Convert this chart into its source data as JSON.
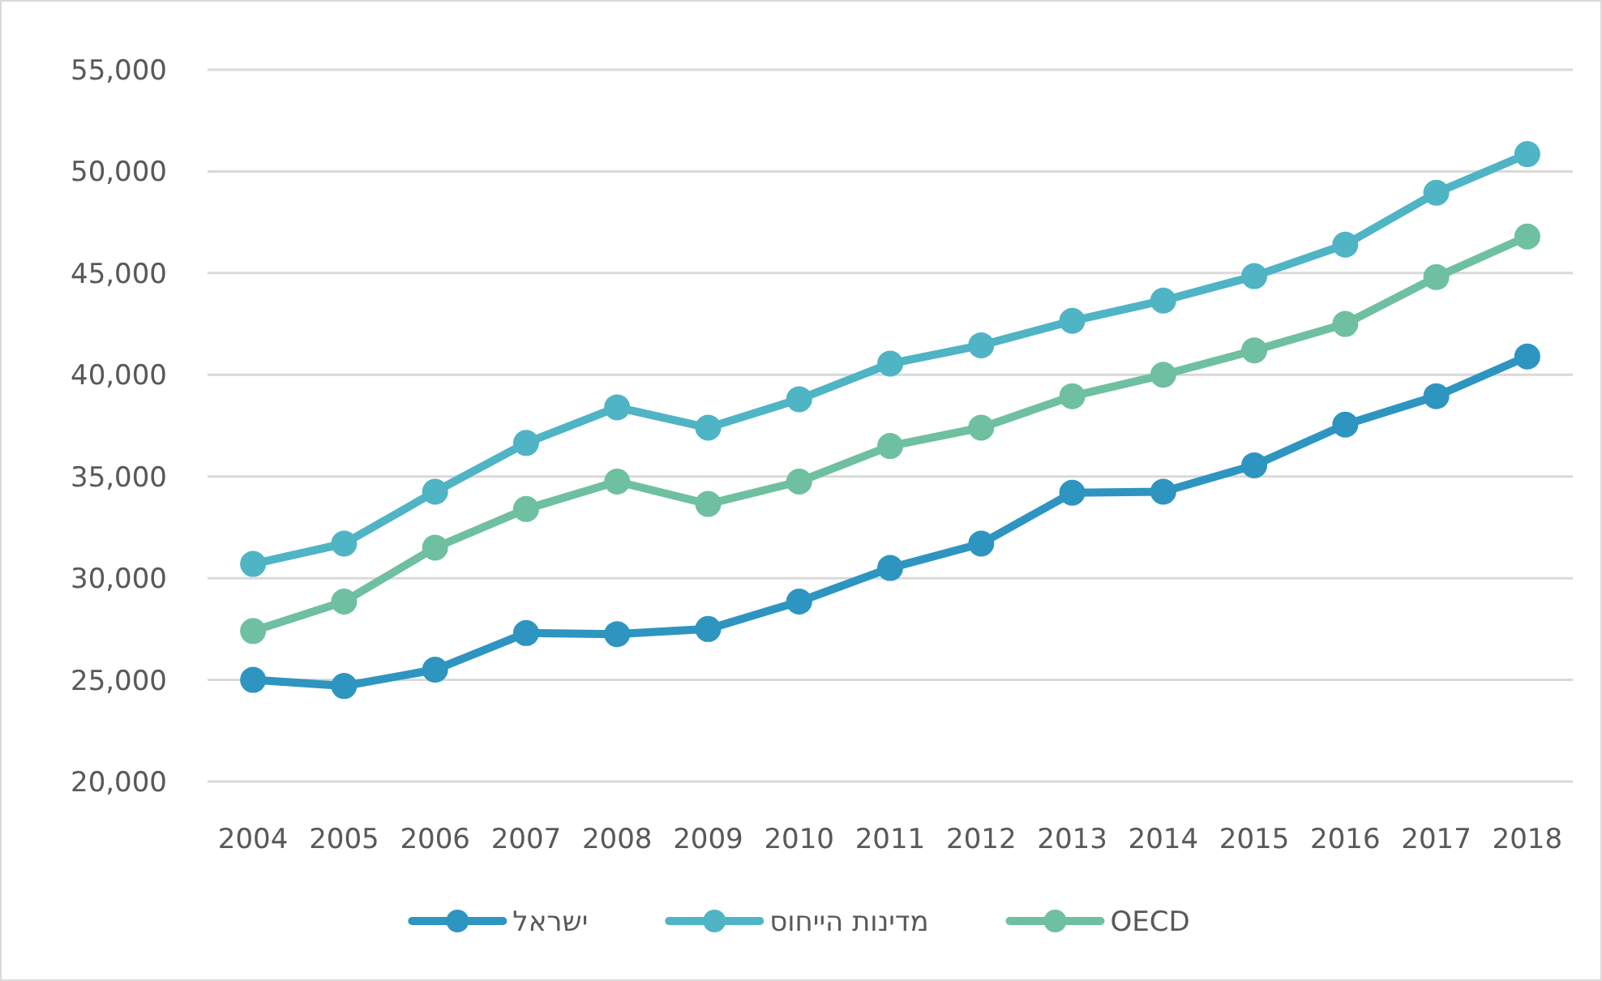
{
  "chart_data": {
    "type": "line",
    "categories": [
      "2004",
      "2005",
      "2006",
      "2007",
      "2008",
      "2009",
      "2010",
      "2011",
      "2012",
      "2013",
      "2014",
      "2015",
      "2016",
      "2017",
      "2018"
    ],
    "ylim": [
      20000,
      55000
    ],
    "yticks": [
      {
        "value": 20000,
        "label": "20,000"
      },
      {
        "value": 25000,
        "label": "25,000"
      },
      {
        "value": 30000,
        "label": "30,000"
      },
      {
        "value": 35000,
        "label": "35,000"
      },
      {
        "value": 40000,
        "label": "40,000"
      },
      {
        "value": 45000,
        "label": "45,000"
      },
      {
        "value": 50000,
        "label": "50,000"
      },
      {
        "value": 55000,
        "label": "55,000"
      }
    ],
    "grid": "y",
    "legend": "bottom",
    "marker": "circle",
    "line_style": "solid",
    "series": [
      {
        "name": "ישראל",
        "color": "#2e95c0",
        "values": [
          25000,
          24700,
          25500,
          27300,
          27250,
          27500,
          28850,
          30500,
          31700,
          34200,
          34250,
          35550,
          37550,
          38950,
          40900
        ]
      },
      {
        "name": "מדינות הייחוס",
        "color": "#4fb4c4",
        "values": [
          30700,
          31700,
          34250,
          36650,
          38400,
          37400,
          38800,
          40550,
          41450,
          42650,
          43650,
          44850,
          46400,
          48950,
          50850
        ]
      },
      {
        "name": "OECD",
        "color": "#6ec0a0",
        "values": [
          27400,
          28850,
          31500,
          33400,
          34750,
          33650,
          34750,
          36500,
          37400,
          38950,
          40000,
          41200,
          42500,
          44800,
          46800
        ]
      }
    ]
  }
}
